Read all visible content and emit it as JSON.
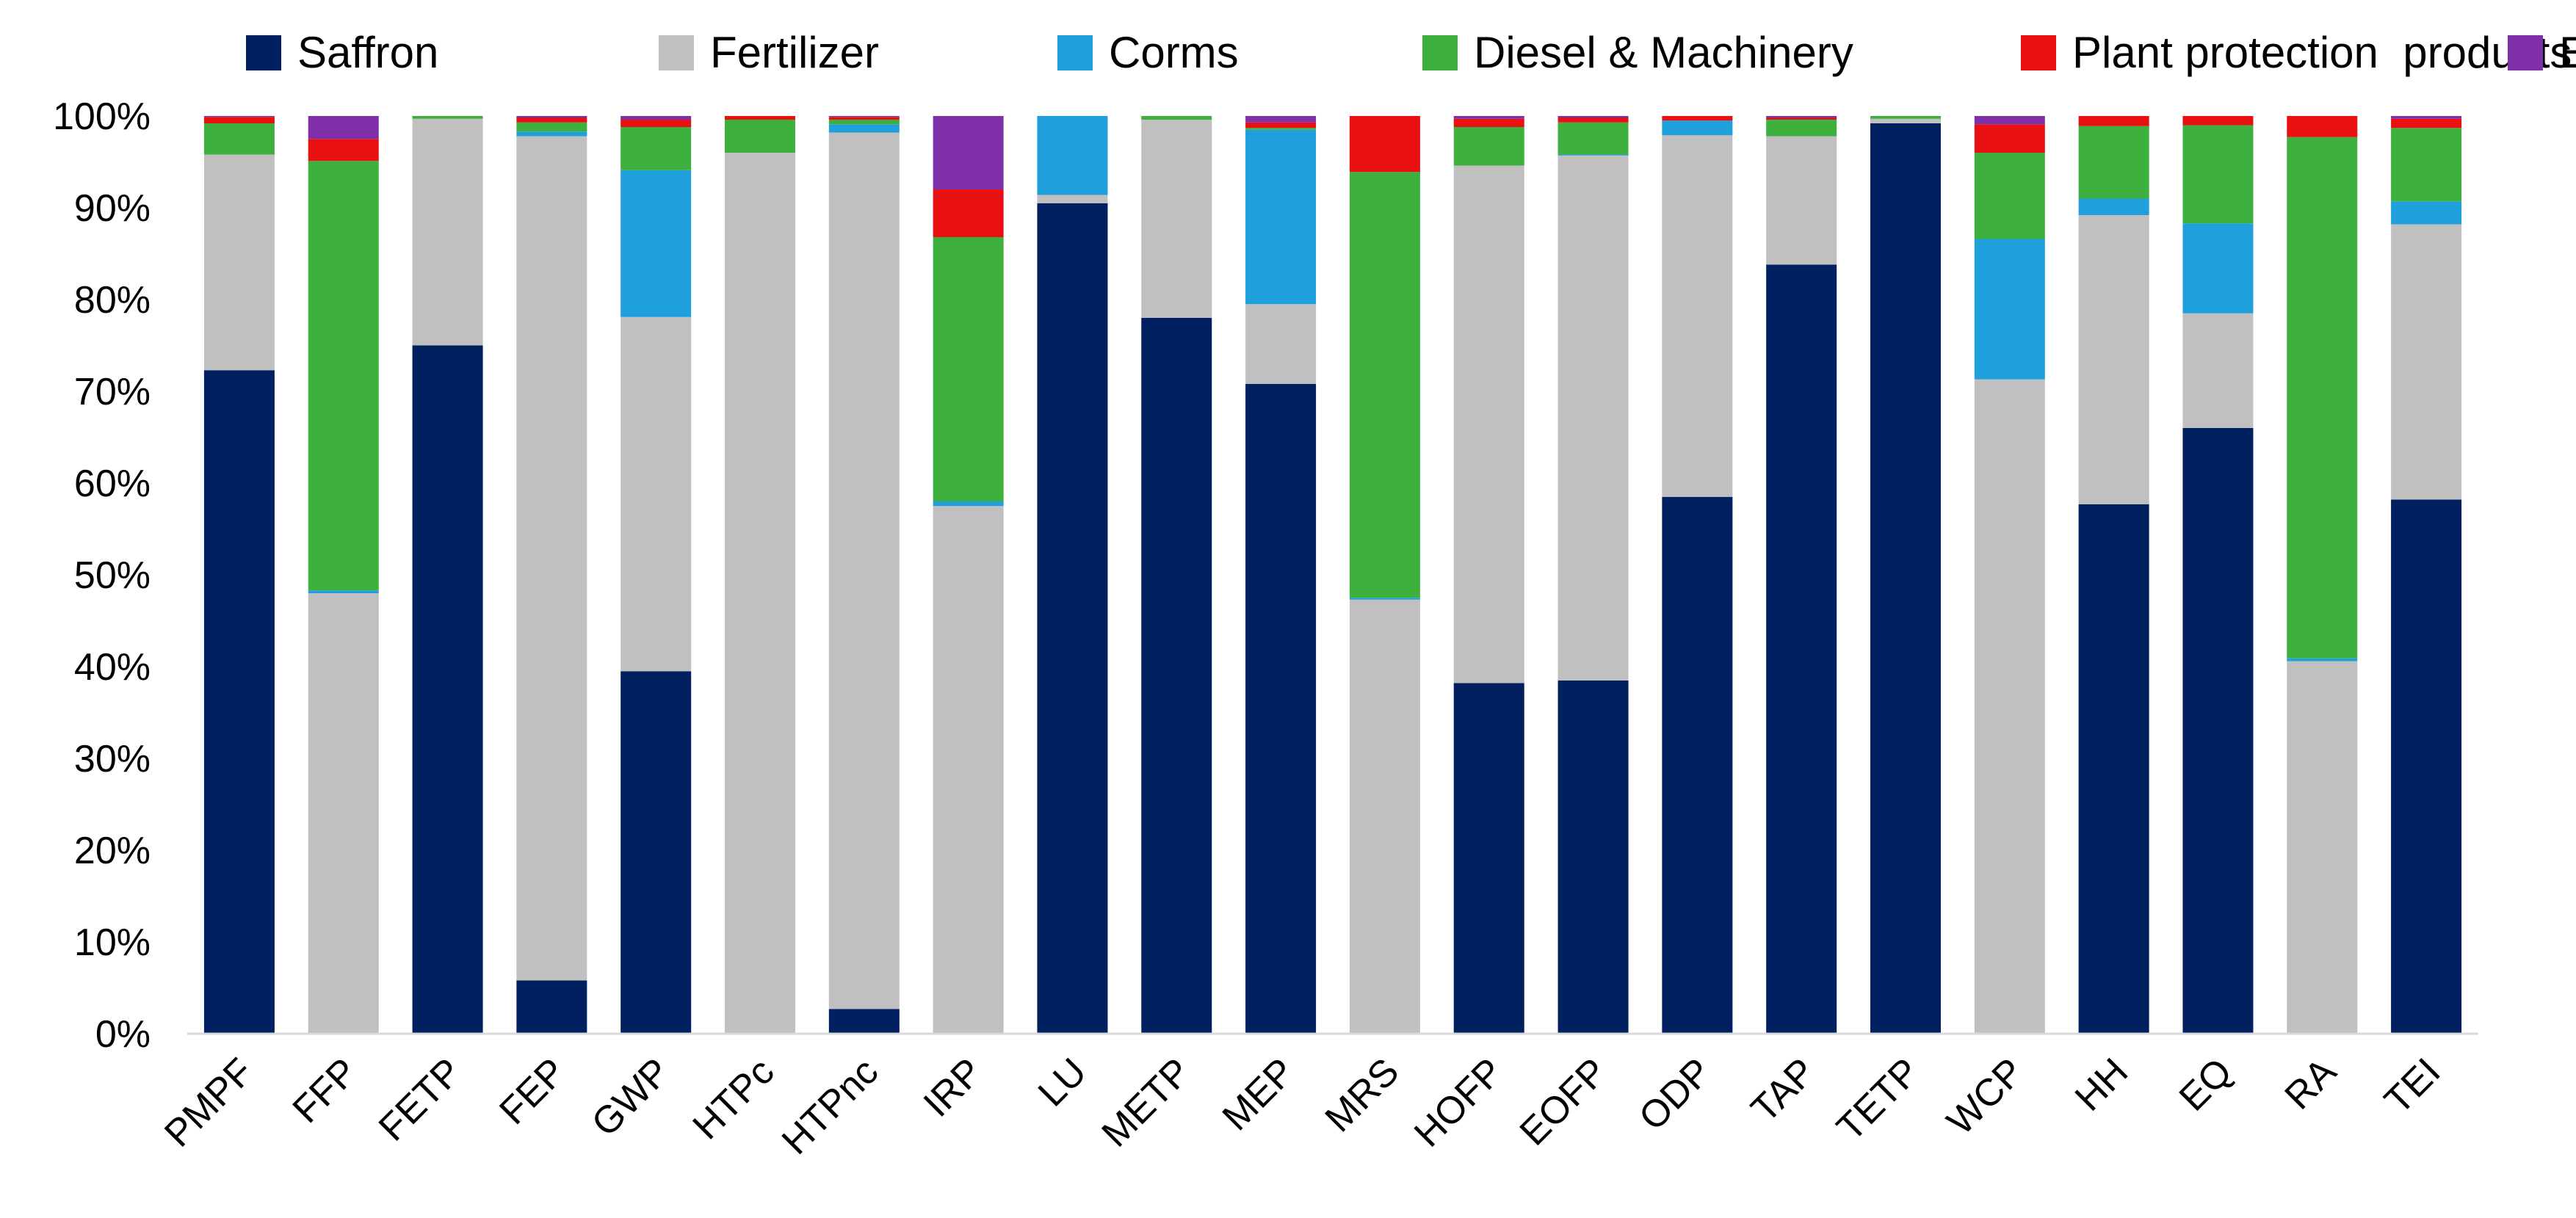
{
  "chart_data": {
    "type": "bar",
    "stacked": true,
    "percent": true,
    "title": "",
    "xlabel": "",
    "ylabel": "",
    "ylim": [
      0,
      100
    ],
    "y_ticks": [
      "0%",
      "10%",
      "20%",
      "30%",
      "40%",
      "50%",
      "60%",
      "70%",
      "80%",
      "90%",
      "100%"
    ],
    "legend_position": "top",
    "categories": [
      "PMPF",
      "FFP",
      "FETP",
      "FEP",
      "GWP",
      "HTPc",
      "HTPnc",
      "IRP",
      "LU",
      "METP",
      "MEP",
      "MRS",
      "HOFP",
      "EOFP",
      "ODP",
      "TAP",
      "TETP",
      "WCP",
      "HH",
      "EQ",
      "RA",
      "TEI"
    ],
    "series": [
      {
        "name": "Saffron",
        "color": "#002060",
        "values": [
          72.3,
          0,
          75,
          5.8,
          39.5,
          0,
          2.7,
          0,
          90.5,
          78,
          70.8,
          0,
          38.2,
          38.5,
          58.5,
          83.8,
          99.2,
          0,
          57.7,
          66,
          0,
          58.2
        ]
      },
      {
        "name": "Fertilizer",
        "color": "#C0C0C0",
        "values": [
          23.5,
          48,
          24.7,
          92,
          38.6,
          96,
          95.5,
          57.5,
          0.9,
          21.6,
          8.7,
          47.3,
          56.4,
          57.2,
          39.4,
          14,
          0.5,
          71.3,
          31.5,
          12.5,
          40.6,
          30
        ]
      },
      {
        "name": "Corms",
        "color": "#1F9FDB",
        "values": [
          0,
          0.3,
          0,
          0.5,
          16,
          0,
          0.9,
          0.5,
          8.6,
          0,
          19,
          0.2,
          0,
          0.1,
          1.6,
          0,
          0,
          15.3,
          1.8,
          9.8,
          0.3,
          2.5
        ]
      },
      {
        "name": "Diesel & Machinery",
        "color": "#3DB03D",
        "values": [
          3.4,
          46.8,
          0.3,
          1,
          4.7,
          3.6,
          0.5,
          28.8,
          0,
          0.4,
          0.2,
          46.4,
          4.2,
          3.5,
          0,
          1.8,
          0.3,
          9.4,
          7.9,
          10.7,
          56.8,
          8
        ]
      },
      {
        "name": "Plant protection  products",
        "color": "#E81010",
        "values": [
          0.7,
          2.4,
          0,
          0.5,
          0.8,
          0.4,
          0.3,
          5.2,
          0,
          0,
          0.6,
          6.1,
          0.9,
          0.5,
          0.5,
          0.2,
          0,
          3.1,
          1.1,
          1.0,
          2.3,
          1.0
        ]
      },
      {
        "name": "Electricity",
        "color": "#7F2FA8",
        "values": [
          0.1,
          2.5,
          0,
          0.2,
          0.4,
          0,
          0.1,
          8,
          0,
          0,
          0.7,
          0,
          0.3,
          0.2,
          0,
          0.2,
          0,
          0.9,
          0,
          0,
          0,
          0.3
        ]
      }
    ]
  }
}
